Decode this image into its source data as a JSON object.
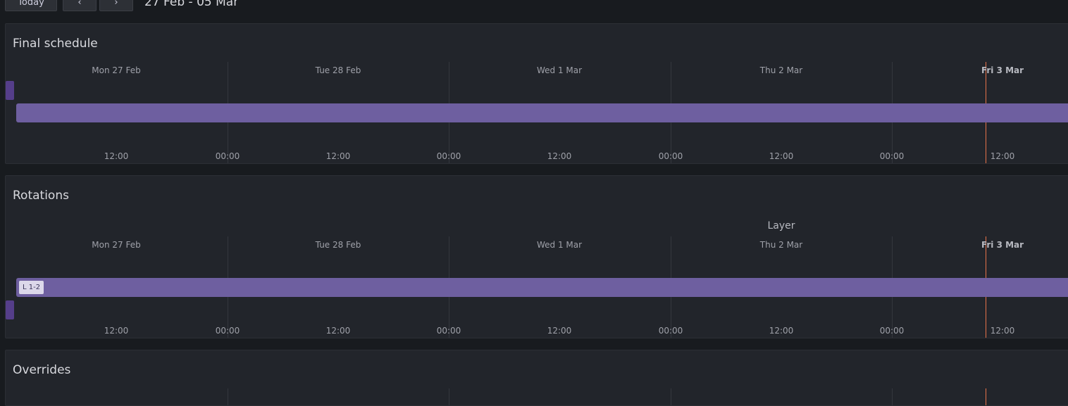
{
  "toolbar": {
    "today_label": "Today",
    "prev_label": "‹",
    "next_label": "›",
    "date_range": "27 Feb - 05 Mar"
  },
  "timeline": {
    "days": [
      {
        "label": "Mon 27 Feb",
        "today": false
      },
      {
        "label": "Tue 28 Feb",
        "today": false
      },
      {
        "label": "Wed 1 Mar",
        "today": false
      },
      {
        "label": "Thu 2 Mar",
        "today": false
      },
      {
        "label": "Fri 3 Mar",
        "today": true
      }
    ],
    "hours": [
      "12:00",
      "00:00",
      "12:00",
      "00:00",
      "12:00",
      "00:00",
      "12:00",
      "00:00",
      "12:00"
    ]
  },
  "final_schedule": {
    "title": "Final schedule"
  },
  "rotations": {
    "title": "Rotations",
    "layer_title": "Layer",
    "shift_tag": "L 1-2"
  },
  "overrides": {
    "title": "Overrides"
  },
  "colors": {
    "accent_purple": "#6e5fa0",
    "now_line": "#e8734a"
  }
}
